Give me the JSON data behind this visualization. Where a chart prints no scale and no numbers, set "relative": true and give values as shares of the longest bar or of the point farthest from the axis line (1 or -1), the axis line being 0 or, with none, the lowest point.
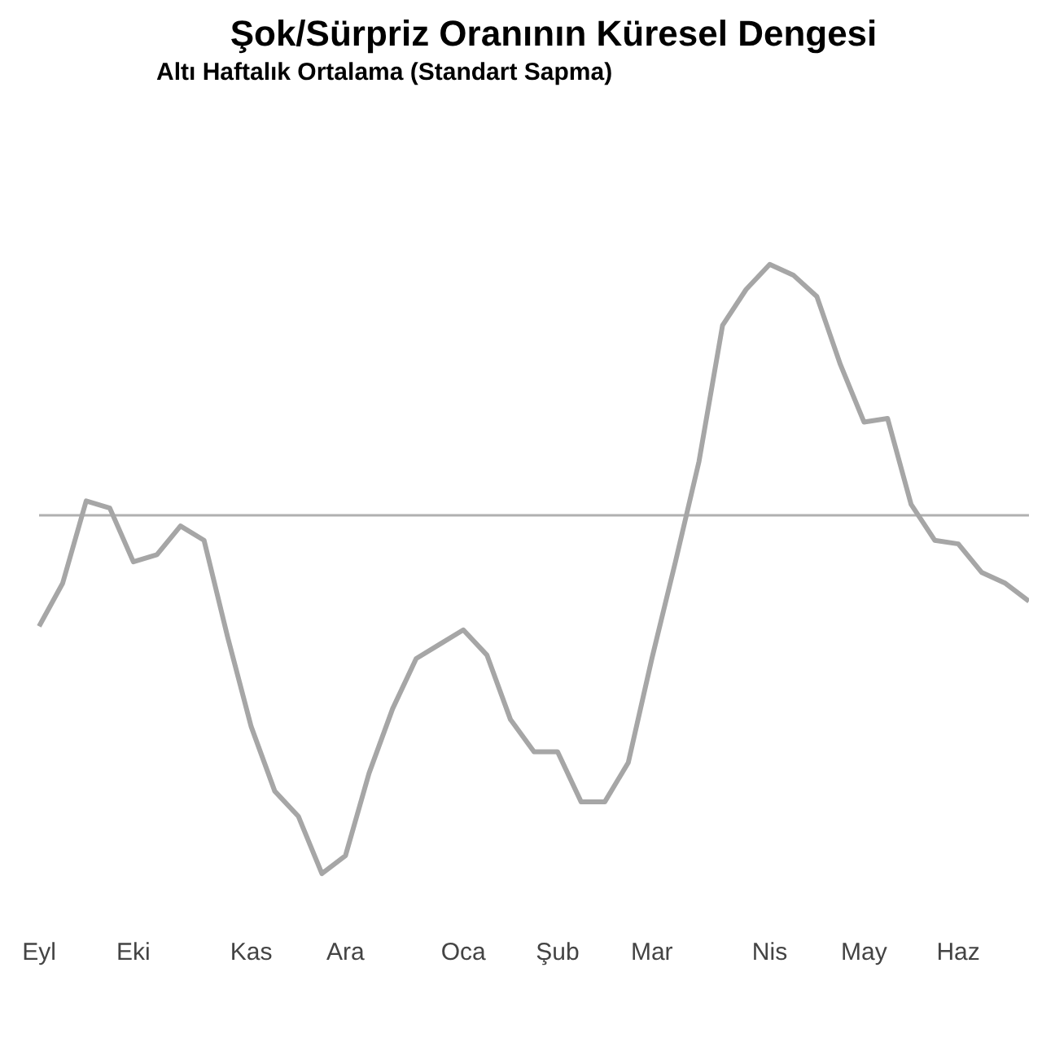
{
  "chart_data": {
    "type": "line",
    "title": "Şok/Sürpriz Oranının Küresel Dengesi",
    "subtitle": "Altı Haftalık Ortalama (Standart Sapma)",
    "relative": true,
    "categories": [
      "Eyl",
      null,
      null,
      null,
      "Eki",
      null,
      null,
      null,
      null,
      "Kas",
      null,
      null,
      null,
      "Ara",
      null,
      null,
      null,
      null,
      "Oca",
      null,
      null,
      null,
      "Şub",
      null,
      null,
      null,
      "Mar",
      null,
      null,
      null,
      null,
      "Nis",
      null,
      null,
      null,
      "May",
      null,
      null,
      null,
      "Haz",
      null,
      null,
      null
    ],
    "series": [
      {
        "color": "#a6a6a6",
        "values": [
          -0.31,
          -0.19,
          0.04,
          0.02,
          -0.13,
          -0.11,
          -0.03,
          -0.07,
          -0.34,
          -0.59,
          -0.77,
          -0.84,
          -1,
          -0.95,
          -0.72,
          -0.54,
          -0.4,
          -0.36,
          -0.32,
          -0.39,
          -0.57,
          -0.66,
          -0.66,
          -0.8,
          -0.8,
          -0.69,
          -0.4,
          -0.13,
          0.15,
          0.53,
          0.63,
          0.7,
          0.67,
          0.61,
          0.42,
          0.26,
          0.27,
          0.03,
          -0.07,
          -0.08,
          -0.16,
          -0.19,
          -0.24
        ]
      }
    ],
    "ref_lines": [
      {
        "axis": "y",
        "value": 0,
        "color": "#b0b0b0"
      }
    ],
    "marker": "none",
    "line_style": "solid",
    "grid": false,
    "legend": false
  }
}
